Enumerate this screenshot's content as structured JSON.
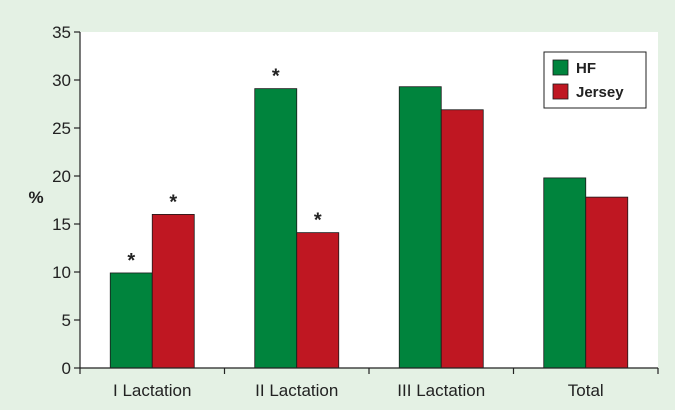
{
  "chart_data": {
    "type": "bar",
    "title": "",
    "xlabel": "",
    "ylabel": "%",
    "ylim": [
      0,
      35
    ],
    "yticks": [
      0,
      5,
      10,
      15,
      20,
      25,
      30,
      35
    ],
    "grid": false,
    "legend_position": "top-right",
    "categories": [
      "I Lactation",
      "II Lactation",
      "III Lactation",
      "Total"
    ],
    "series": [
      {
        "name": "HF",
        "color": "#00843d",
        "values": [
          9.9,
          29.1,
          29.3,
          19.8
        ]
      },
      {
        "name": "Jersey",
        "color": "#bf1722",
        "values": [
          16.0,
          14.1,
          26.9,
          17.8
        ]
      }
    ],
    "annotations": {
      "marker": "*",
      "marked_bars": [
        {
          "category": "I Lactation",
          "series": "HF"
        },
        {
          "category": "I Lactation",
          "series": "Jersey"
        },
        {
          "category": "II Lactation",
          "series": "HF"
        },
        {
          "category": "II Lactation",
          "series": "Jersey"
        }
      ]
    }
  }
}
